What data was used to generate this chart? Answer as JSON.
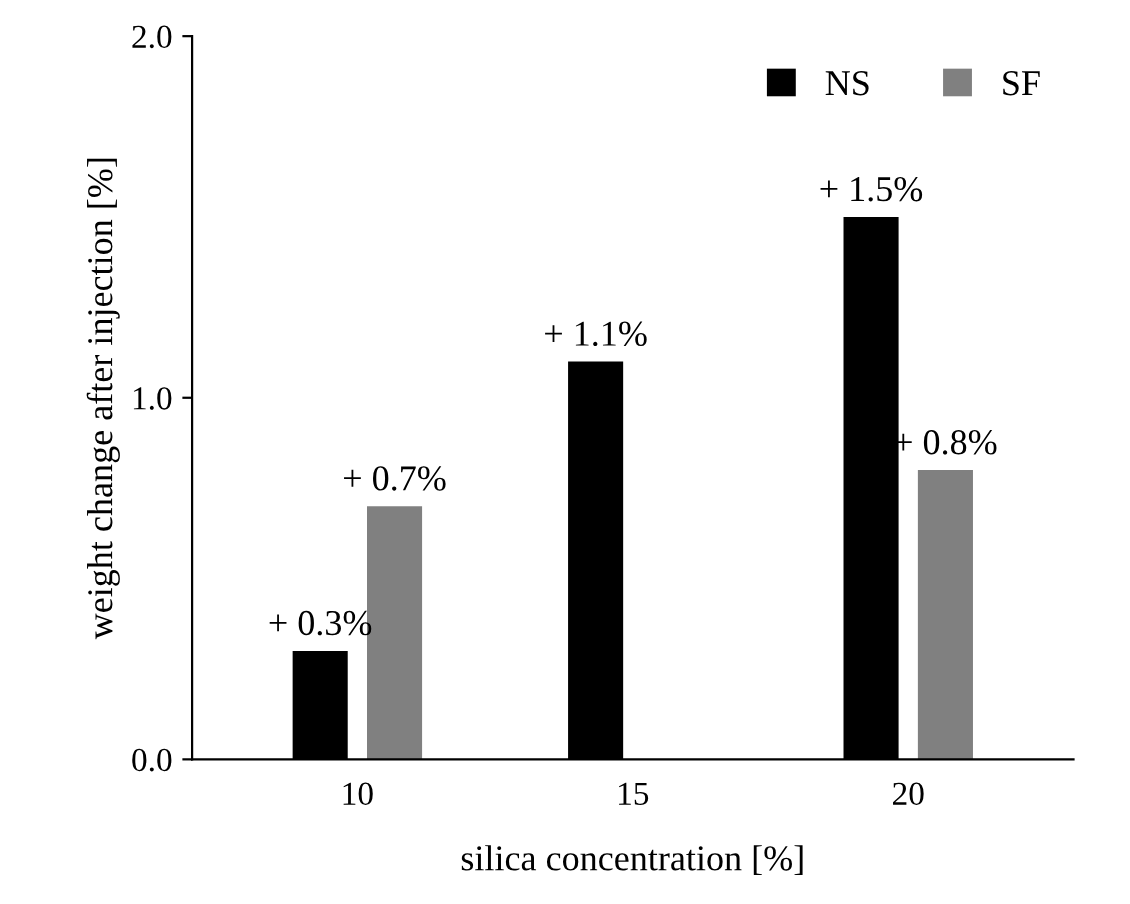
{
  "chart_data": {
    "type": "bar",
    "xlabel": "silica concentration [%]",
    "ylabel": "weight change after injection [%]",
    "categories": [
      "10",
      "15",
      "20"
    ],
    "series": [
      {
        "name": "NS",
        "color": "#000000",
        "values": [
          0.3,
          1.1,
          1.5
        ],
        "value_labels": [
          "+ 0.3%",
          "+ 1.1%",
          "+ 1.5%"
        ]
      },
      {
        "name": "SF",
        "color": "#808080",
        "values": [
          0.7,
          null,
          0.8
        ],
        "value_labels": [
          "+ 0.7%",
          null,
          "+ 0.8%"
        ]
      }
    ],
    "ylim": [
      0,
      2
    ],
    "yticks": [
      {
        "value": 0,
        "label": "0.0"
      },
      {
        "value": 1,
        "label": "1.0"
      },
      {
        "value": 2,
        "label": "2.0"
      }
    ],
    "grid": false,
    "legend": "top right"
  }
}
